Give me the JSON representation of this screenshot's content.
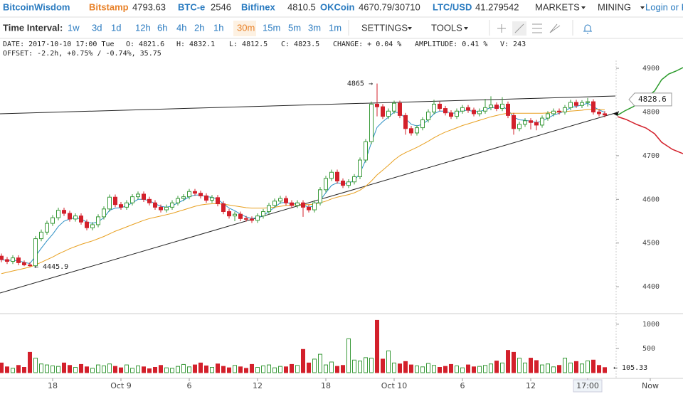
{
  "header": {
    "brand": "BitcoinWisdom",
    "markets": [
      {
        "name": "Bitstamp",
        "price": "4793.63"
      },
      {
        "name": "BTC-e",
        "price": "2546"
      },
      {
        "name": "Bitfinex",
        "price": "4810.5"
      },
      {
        "name": "OKCoin",
        "price": "4670.79/30710"
      },
      {
        "name": "LTC/USD",
        "price": "41.279542"
      }
    ],
    "menu": [
      "MARKETS",
      "MINING"
    ],
    "login": "Login or R"
  },
  "toolbar": {
    "label": "Time Interval:",
    "intervals": [
      "1w",
      "3d",
      "1d",
      "12h",
      "6h",
      "4h",
      "2h",
      "1h",
      "30m",
      "15m",
      "5m",
      "3m",
      "1m"
    ],
    "active": "30m",
    "buttons": [
      "SETTINGS",
      "TOOLS"
    ]
  },
  "info": {
    "line1": [
      "DATE: 2017-10-10 17:00 Tue",
      "O: 4821.6",
      "H: 4832.1",
      "L: 4812.5",
      "C: 4823.5",
      "CHANGE: + 0.04 %",
      "AMPLITUDE: 0.41 %",
      "V: 243"
    ],
    "line2": "OFFSET: -2.2h, +0.75% / -0.74%, 35.75"
  },
  "chart_data": {
    "type": "candlestick",
    "up_color": "#3a9a3a",
    "down_color": "#d3202b",
    "ylim": [
      4340,
      4918
    ],
    "yticks": [
      4400,
      4500,
      4600,
      4700,
      4800,
      4900
    ],
    "volume_ylim": [
      0,
      1130
    ],
    "volume_yticks": [
      500,
      1000
    ],
    "xticks": [
      {
        "value": 9,
        "label": "18"
      },
      {
        "value": 21,
        "label": "Oct 9"
      },
      {
        "value": 33,
        "label": "6"
      },
      {
        "value": 45,
        "label": "12"
      },
      {
        "value": 57,
        "label": "18"
      },
      {
        "value": 69,
        "label": "Oct 10"
      },
      {
        "value": 81,
        "label": "6"
      },
      {
        "value": 93,
        "label": "12"
      },
      {
        "value": 103,
        "label": "17:00"
      },
      {
        "value": 114,
        "label": "Now"
      }
    ],
    "last_price": 4828.6,
    "high_label": "4865 →",
    "low_label": "← 4445.9",
    "volume_label": "← 105.33",
    "values": [
      [
        4470,
        4476,
        4456,
        4462
      ],
      [
        4462,
        4468,
        4452,
        4458
      ],
      [
        4458,
        4472,
        4452,
        4466
      ],
      [
        4466,
        4472,
        4449,
        4455
      ],
      [
        4455,
        4460,
        4447,
        4450
      ],
      [
        4450,
        4456,
        4445.9,
        4448
      ],
      [
        4448,
        4516,
        4446,
        4510
      ],
      [
        4510,
        4531,
        4504,
        4525
      ],
      [
        4525,
        4551,
        4519,
        4545
      ],
      [
        4545,
        4564,
        4539,
        4558
      ],
      [
        4558,
        4581,
        4552,
        4575
      ],
      [
        4575,
        4581,
        4562,
        4568
      ],
      [
        4568,
        4574,
        4549,
        4555
      ],
      [
        4555,
        4568,
        4549,
        4562
      ],
      [
        4562,
        4568,
        4542,
        4548
      ],
      [
        4548,
        4554,
        4529,
        4535
      ],
      [
        4535,
        4548,
        4529,
        4542
      ],
      [
        4542,
        4566,
        4536,
        4560
      ],
      [
        4560,
        4584,
        4554,
        4578
      ],
      [
        4578,
        4611,
        4572,
        4605
      ],
      [
        4605,
        4611,
        4582,
        4588
      ],
      [
        4588,
        4594,
        4576,
        4582
      ],
      [
        4582,
        4598,
        4576,
        4592
      ],
      [
        4592,
        4612,
        4586,
        4606
      ],
      [
        4606,
        4618,
        4600,
        4612
      ],
      [
        4612,
        4618,
        4594,
        4600
      ],
      [
        4600,
        4606,
        4586,
        4592
      ],
      [
        4592,
        4598,
        4576,
        4582
      ],
      [
        4582,
        4588,
        4570,
        4576
      ],
      [
        4576,
        4588,
        4570,
        4582
      ],
      [
        4582,
        4598,
        4576,
        4592
      ],
      [
        4592,
        4608,
        4586,
        4602
      ],
      [
        4602,
        4612,
        4596,
        4606
      ],
      [
        4606,
        4624,
        4600,
        4618
      ],
      [
        4618,
        4624,
        4608,
        4614
      ],
      [
        4614,
        4620,
        4602,
        4608
      ],
      [
        4608,
        4614,
        4592,
        4598
      ],
      [
        4598,
        4610,
        4592,
        4604
      ],
      [
        4604,
        4610,
        4584,
        4590
      ],
      [
        4590,
        4596,
        4566,
        4572
      ],
      [
        4572,
        4578,
        4556,
        4562
      ],
      [
        4562,
        4572,
        4550,
        4566
      ],
      [
        4566,
        4572,
        4550,
        4556
      ],
      [
        4556,
        4562,
        4549,
        4555
      ],
      [
        4555,
        4561,
        4546,
        4552
      ],
      [
        4552,
        4568,
        4546,
        4562
      ],
      [
        4562,
        4578,
        4556,
        4572
      ],
      [
        4572,
        4592,
        4566,
        4586
      ],
      [
        4586,
        4602,
        4580,
        4596
      ],
      [
        4596,
        4608,
        4590,
        4602
      ],
      [
        4602,
        4608,
        4586,
        4592
      ],
      [
        4592,
        4598,
        4580,
        4586
      ],
      [
        4586,
        4598,
        4580,
        4592
      ],
      [
        4592,
        4598,
        4560,
        4582
      ],
      [
        4582,
        4588,
        4570,
        4576
      ],
      [
        4576,
        4598,
        4570,
        4592
      ],
      [
        4592,
        4628,
        4586,
        4622
      ],
      [
        4622,
        4654,
        4616,
        4648
      ],
      [
        4648,
        4668,
        4642,
        4662
      ],
      [
        4662,
        4668,
        4636,
        4642
      ],
      [
        4642,
        4648,
        4626,
        4632
      ],
      [
        4632,
        4646,
        4626,
        4640
      ],
      [
        4640,
        4658,
        4634,
        4652
      ],
      [
        4652,
        4696,
        4646,
        4690
      ],
      [
        4690,
        4738,
        4684,
        4732
      ],
      [
        4732,
        4824,
        4726,
        4818
      ],
      [
        4818,
        4865,
        4790,
        4812
      ],
      [
        4812,
        4818,
        4784,
        4790
      ],
      [
        4790,
        4808,
        4784,
        4802
      ],
      [
        4802,
        4826,
        4796,
        4820
      ],
      [
        4820,
        4826,
        4786,
        4792
      ],
      [
        4792,
        4798,
        4748,
        4762
      ],
      [
        4762,
        4768,
        4746,
        4752
      ],
      [
        4752,
        4770,
        4746,
        4764
      ],
      [
        4764,
        4788,
        4758,
        4782
      ],
      [
        4782,
        4806,
        4776,
        4800
      ],
      [
        4800,
        4828,
        4794,
        4818
      ],
      [
        4818,
        4824,
        4802,
        4808
      ],
      [
        4808,
        4814,
        4792,
        4798
      ],
      [
        4798,
        4804,
        4784,
        4790
      ],
      [
        4790,
        4808,
        4784,
        4802
      ],
      [
        4802,
        4816,
        4796,
        4810
      ],
      [
        4810,
        4816,
        4798,
        4804
      ],
      [
        4804,
        4810,
        4790,
        4796
      ],
      [
        4796,
        4808,
        4790,
        4802
      ],
      [
        4802,
        4830,
        4796,
        4810
      ],
      [
        4810,
        4836,
        4804,
        4816
      ],
      [
        4816,
        4822,
        4802,
        4808
      ],
      [
        4808,
        4834,
        4802,
        4818
      ],
      [
        4818,
        4824,
        4786,
        4792
      ],
      [
        4792,
        4798,
        4748,
        4762
      ],
      [
        4762,
        4778,
        4756,
        4772
      ],
      [
        4772,
        4786,
        4766,
        4780
      ],
      [
        4780,
        4786,
        4760,
        4776
      ],
      [
        4776,
        4782,
        4758,
        4770
      ],
      [
        4770,
        4792,
        4764,
        4786
      ],
      [
        4786,
        4802,
        4780,
        4796
      ],
      [
        4796,
        4808,
        4790,
        4802
      ],
      [
        4802,
        4808,
        4794,
        4800
      ],
      [
        4800,
        4816,
        4794,
        4810
      ],
      [
        4810,
        4828,
        4804,
        4822
      ],
      [
        4822,
        4828,
        4809,
        4815
      ],
      [
        4815,
        4827,
        4809,
        4821.6
      ],
      [
        4821.6,
        4832.1,
        4812.5,
        4823.5
      ],
      [
        4823.5,
        4829,
        4794,
        4800
      ],
      [
        4800,
        4806,
        4790,
        4796
      ],
      [
        4796,
        4802,
        4788,
        4793
      ]
    ],
    "volumes": [
      200,
      120,
      90,
      150,
      110,
      420,
      300,
      180,
      160,
      140,
      130,
      200,
      150,
      110,
      170,
      120,
      90,
      160,
      140,
      180,
      130,
      100,
      160,
      90,
      140,
      120,
      80,
      110,
      150,
      100,
      90,
      130,
      170,
      120,
      160,
      200,
      140,
      110,
      180,
      130,
      100,
      150,
      120,
      90,
      170,
      110,
      140,
      160,
      100,
      130,
      120,
      170,
      150,
      480,
      200,
      280,
      380,
      160,
      220,
      130,
      150,
      700,
      260,
      240,
      310,
      300,
      1080,
      280,
      450,
      200,
      180,
      230,
      160,
      140,
      120,
      190,
      150,
      110,
      130,
      170,
      140,
      100,
      160,
      120,
      130,
      150,
      180,
      240,
      200,
      460,
      420,
      300,
      200,
      300,
      250,
      160,
      180,
      120,
      150,
      300,
      200,
      230,
      180,
      243,
      260,
      150,
      105.33
    ],
    "ma": [
      {
        "color": "#2b8fc4",
        "values": [
          4462,
          4460,
          4461,
          4459,
          4456,
          4453,
          4470,
          4488,
          4505,
          4520,
          4538,
          4550,
          4555,
          4558,
          4555,
          4548,
          4545,
          4549,
          4558,
          4575,
          4580,
          4581,
          4585,
          4592,
          4600,
          4600,
          4597,
          4590,
          4584,
          4582,
          4585,
          4592,
          4598,
          4606,
          4610,
          4610,
          4606,
          4605,
          4600,
          4590,
          4580,
          4574,
          4566,
          4560,
          4556,
          4558,
          4563,
          4572,
          4582,
          4592,
          4593,
          4590,
          4590,
          4587,
          4582,
          4585,
          4598,
          4615,
          4632,
          4638,
          4636,
          4637,
          4643,
          4660,
          4690,
          4730,
          4765,
          4778,
          4788,
          4800,
          4798,
          4785,
          4772,
          4768,
          4772,
          4782,
          4796,
          4802,
          4802,
          4797,
          4798,
          4803,
          4804,
          4801,
          4801,
          4805,
          4810,
          4810,
          4813,
          4805,
          4788,
          4782,
          4781,
          4779,
          4776,
          4779,
          4786,
          4793,
          4797,
          4802,
          4810,
          4813,
          4816,
          4820,
          4812,
          4805,
          4799
        ]
      },
      {
        "color": "#e8a020",
        "values": [
          4430,
          4433,
          4436,
          4439,
          4442,
          4445,
          4450,
          4456,
          4462,
          4468,
          4475,
          4481,
          4487,
          4492,
          4497,
          4501,
          4505,
          4510,
          4515,
          4521,
          4527,
          4532,
          4537,
          4542,
          4547,
          4552,
          4556,
          4559,
          4562,
          4565,
          4568,
          4572,
          4576,
          4580,
          4584,
          4587,
          4589,
          4590,
          4590,
          4589,
          4587,
          4585,
          4583,
          4581,
          4580,
          4580,
          4580,
          4581,
          4582,
          4584,
          4586,
          4587,
          4588,
          4588,
          4588,
          4589,
          4592,
          4596,
          4601,
          4605,
          4608,
          4611,
          4615,
          4621,
          4630,
          4642,
          4656,
          4667,
          4678,
          4690,
          4700,
          4707,
          4713,
          4719,
          4726,
          4733,
          4741,
          4748,
          4754,
          4759,
          4764,
          4769,
          4773,
          4777,
          4781,
          4785,
          4789,
          4792,
          4795,
          4797,
          4797,
          4797,
          4797,
          4797,
          4797,
          4797,
          4798,
          4799,
          4800,
          4801,
          4802,
          4803,
          4804,
          4806,
          4806,
          4806,
          4805
        ]
      }
    ]
  }
}
